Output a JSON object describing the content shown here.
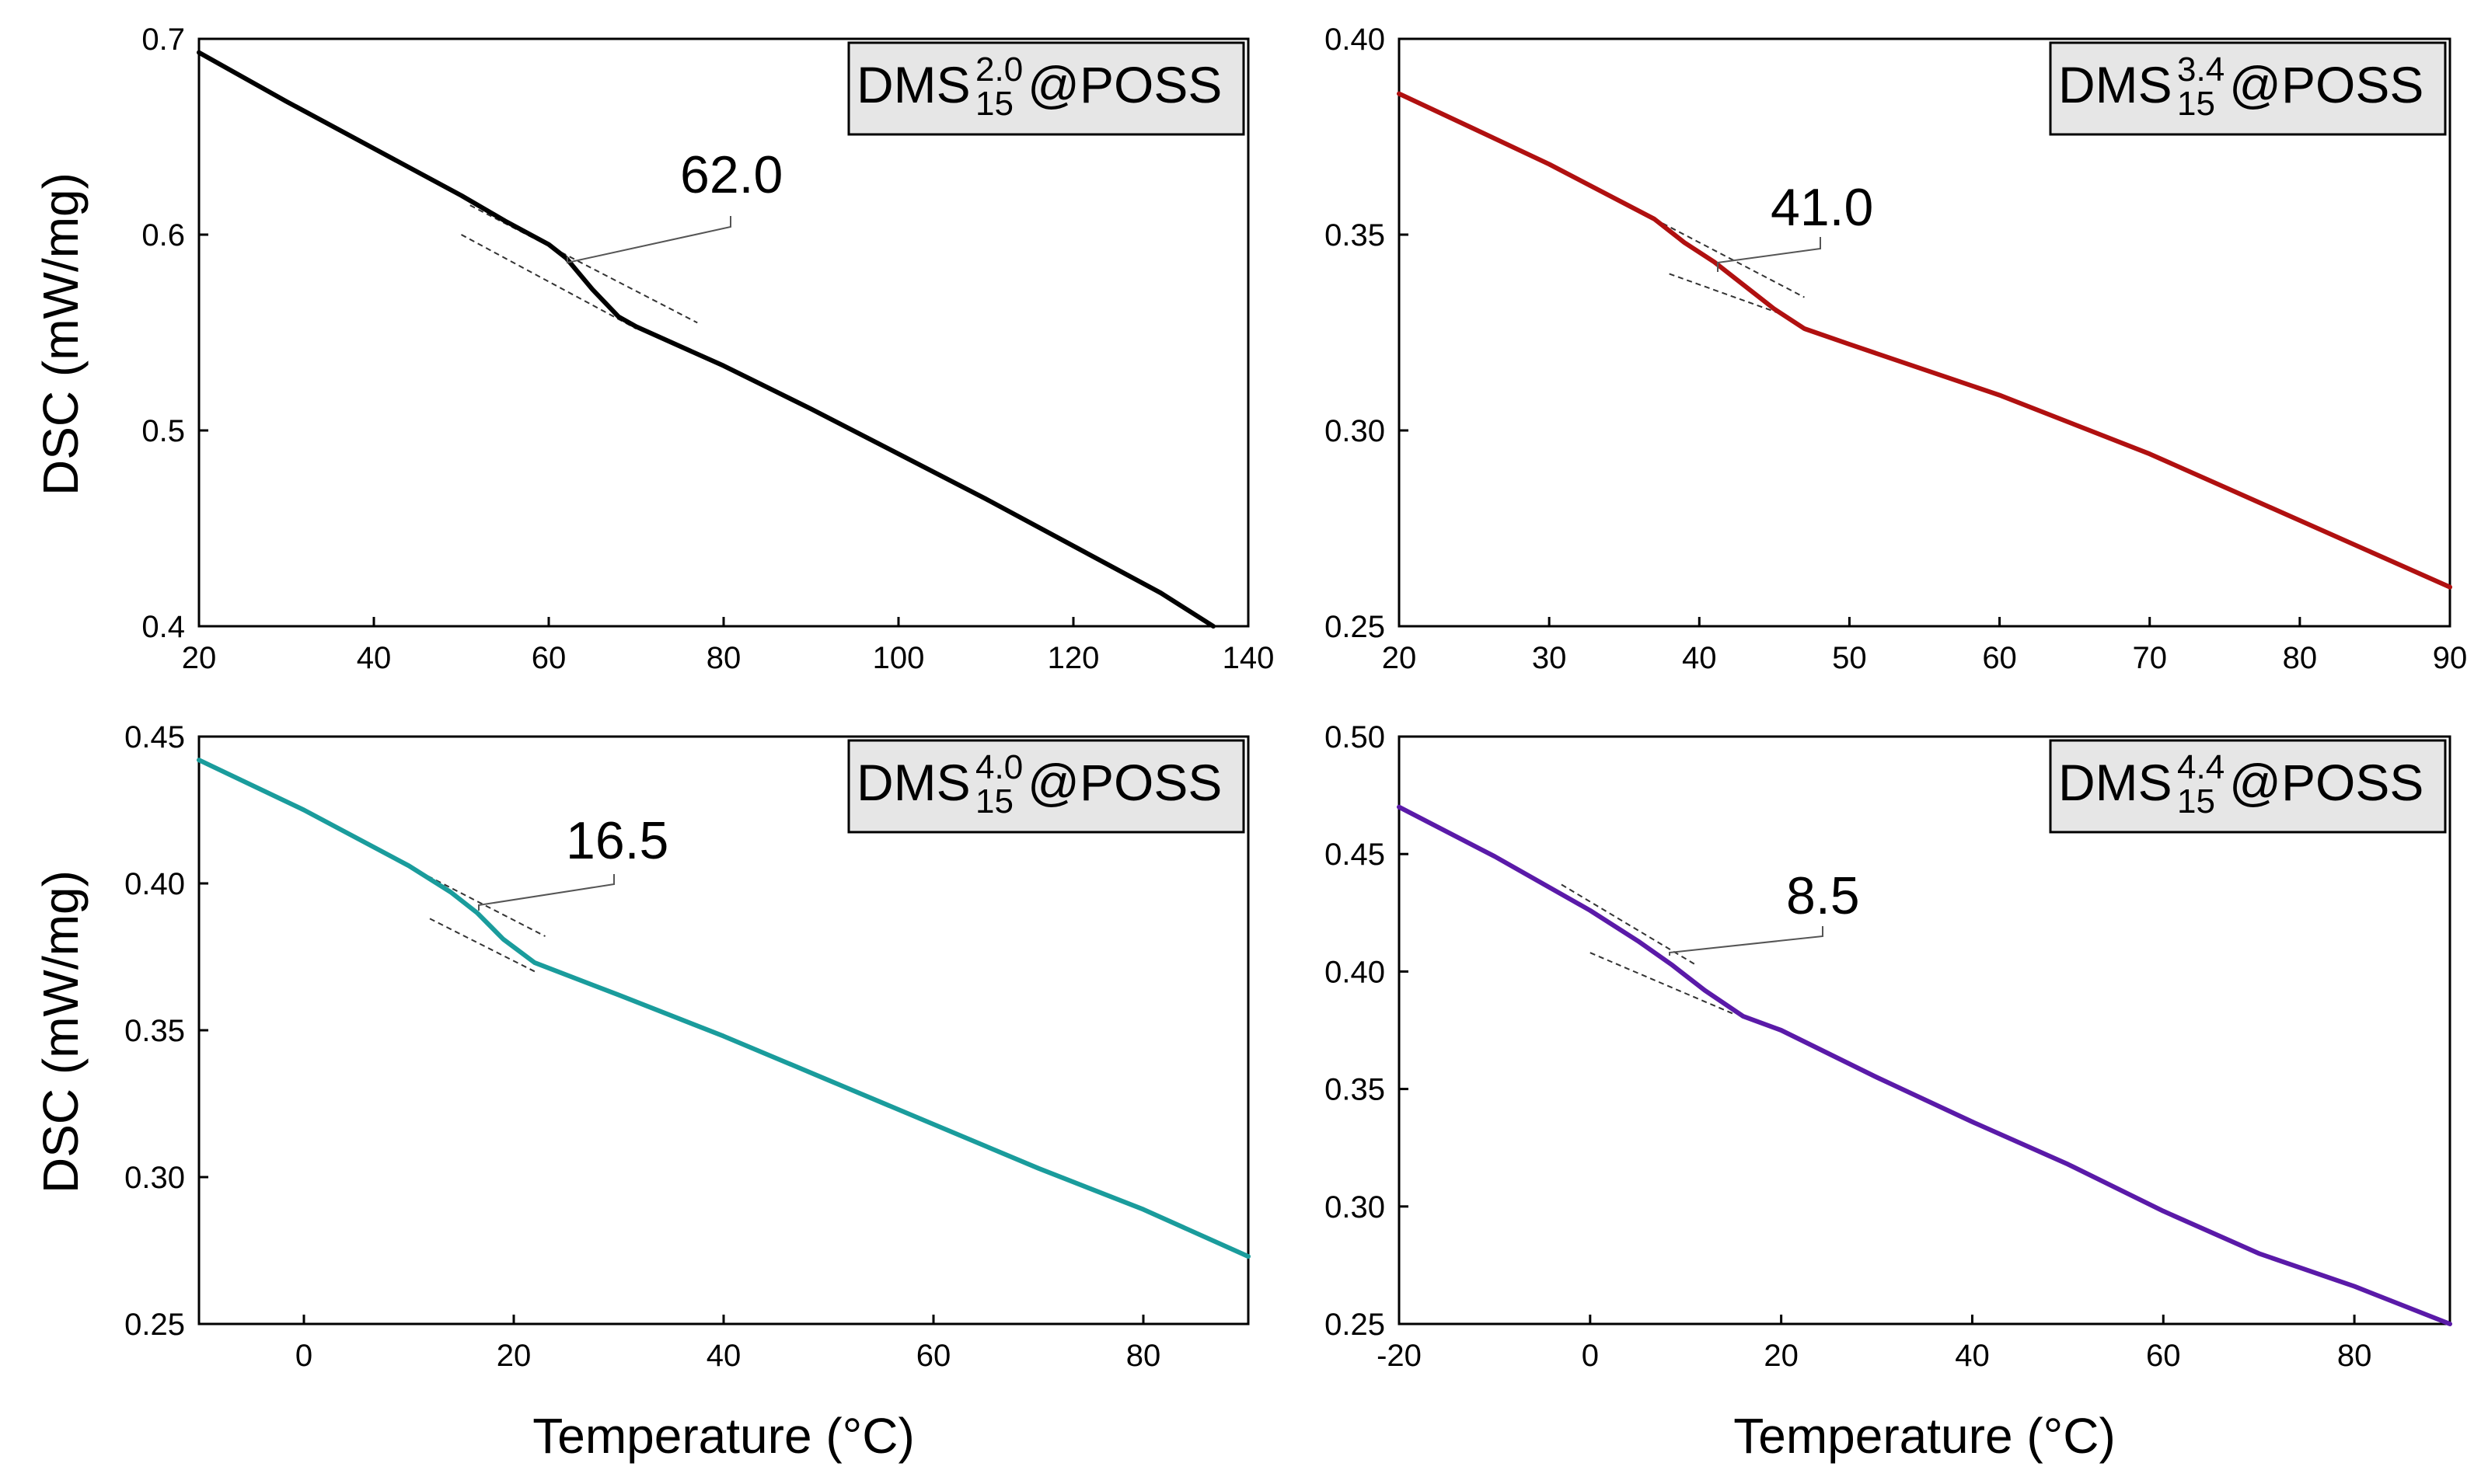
{
  "figure": {
    "ylabel": "DSC (mW/mg)",
    "xlabel": "Temperature (°C)"
  },
  "chart_data": [
    {
      "type": "line",
      "panel": "top-left",
      "legend": {
        "base": "DMS",
        "sup": "2.0",
        "sub": "15",
        "suffix": "@POSS"
      },
      "color": "#000000",
      "xlim": [
        20,
        140
      ],
      "ylim": [
        0.4,
        0.7
      ],
      "xticks": [
        20,
        40,
        60,
        80,
        100,
        120,
        140
      ],
      "xtick_labels": [
        "20",
        "40",
        "60",
        "80",
        "100",
        "120",
        "140"
      ],
      "yticks": [
        0.4,
        0.5,
        0.6,
        0.7
      ],
      "ytick_labels": [
        "0.4",
        "0.5",
        "0.6",
        "0.7"
      ],
      "ylabel": "DSC (mW/mg)",
      "xlabel": "",
      "annotation": {
        "text": "62.0",
        "tg": 62.0
      },
      "series": [
        {
          "name": "DMS15 2.0 @POSS",
          "x": [
            20,
            30,
            40,
            50,
            55,
            60,
            62,
            65,
            68,
            70,
            80,
            90,
            100,
            110,
            120,
            130,
            136
          ],
          "y": [
            0.693,
            0.668,
            0.644,
            0.62,
            0.607,
            0.595,
            0.588,
            0.572,
            0.558,
            0.553,
            0.533,
            0.511,
            0.488,
            0.465,
            0.441,
            0.417,
            0.4
          ]
        }
      ],
      "tangents": [
        {
          "x": [
            51,
            77
          ],
          "y": [
            0.615,
            0.555
          ]
        },
        {
          "x": [
            50,
            70
          ],
          "y": [
            0.6,
            0.552
          ]
        }
      ]
    },
    {
      "type": "line",
      "panel": "top-right",
      "legend": {
        "base": "DMS",
        "sup": "3.4",
        "sub": "15",
        "suffix": "@POSS"
      },
      "color": "#b01010",
      "xlim": [
        20,
        90
      ],
      "ylim": [
        0.25,
        0.4
      ],
      "xticks": [
        20,
        30,
        40,
        50,
        60,
        70,
        80,
        90
      ],
      "xtick_labels": [
        "20",
        "30",
        "40",
        "50",
        "60",
        "70",
        "80",
        "90"
      ],
      "yticks": [
        0.25,
        0.3,
        0.35,
        0.4
      ],
      "ytick_labels": [
        "0.25",
        "0.30",
        "0.35",
        "0.40"
      ],
      "ylabel": "",
      "xlabel": "",
      "annotation": {
        "text": "41.0",
        "tg": 41.0
      },
      "series": [
        {
          "name": "DMS15 3.4 @POSS",
          "x": [
            20,
            25,
            30,
            35,
            37,
            39,
            41,
            43,
            45,
            47,
            50,
            60,
            70,
            80,
            90
          ],
          "y": [
            0.386,
            0.377,
            0.368,
            0.358,
            0.354,
            0.348,
            0.343,
            0.337,
            0.331,
            0.326,
            0.322,
            0.309,
            0.294,
            0.277,
            0.26
          ]
        }
      ],
      "tangents": [
        {
          "x": [
            37,
            47
          ],
          "y": [
            0.354,
            0.334
          ]
        },
        {
          "x": [
            38,
            46
          ],
          "y": [
            0.34,
            0.329
          ]
        }
      ]
    },
    {
      "type": "line",
      "panel": "bottom-left",
      "legend": {
        "base": "DMS",
        "sup": "4.0",
        "sub": "15",
        "suffix": "@POSS"
      },
      "color": "#1a9c9c",
      "xlim": [
        -10,
        90
      ],
      "ylim": [
        0.25,
        0.45
      ],
      "xticks": [
        0,
        20,
        40,
        60,
        80
      ],
      "xtick_labels": [
        "0",
        "20",
        "40",
        "60",
        "80"
      ],
      "yticks": [
        0.25,
        0.3,
        0.35,
        0.4,
        0.45
      ],
      "ytick_labels": [
        "0.25",
        "0.30",
        "0.35",
        "0.40",
        "0.45"
      ],
      "ylabel": "DSC (mW/mg)",
      "xlabel": "Temperature (°C)",
      "annotation": {
        "text": "16.5",
        "tg": 16.5
      },
      "series": [
        {
          "name": "DMS15 4.0 @POSS",
          "x": [
            -10,
            0,
            10,
            14,
            16.5,
            19,
            22,
            30,
            40,
            50,
            60,
            70,
            80,
            90
          ],
          "y": [
            0.442,
            0.425,
            0.406,
            0.397,
            0.39,
            0.381,
            0.373,
            0.362,
            0.348,
            0.333,
            0.318,
            0.303,
            0.289,
            0.273
          ]
        }
      ],
      "tangents": [
        {
          "x": [
            11,
            23
          ],
          "y": [
            0.404,
            0.382
          ]
        },
        {
          "x": [
            12,
            22
          ],
          "y": [
            0.388,
            0.37
          ]
        }
      ]
    },
    {
      "type": "line",
      "panel": "bottom-right",
      "legend": {
        "base": "DMS",
        "sup": "4.4",
        "sub": "15",
        "suffix": "@POSS"
      },
      "color": "#5a1aa8",
      "xlim": [
        -20,
        90
      ],
      "ylim": [
        0.25,
        0.5
      ],
      "xticks": [
        -20,
        0,
        20,
        40,
        60,
        80
      ],
      "xtick_labels": [
        "-20",
        "0",
        "20",
        "40",
        "60",
        "80"
      ],
      "yticks": [
        0.25,
        0.3,
        0.35,
        0.4,
        0.45,
        0.5
      ],
      "ytick_labels": [
        "0.25",
        "0.30",
        "0.35",
        "0.40",
        "0.45",
        "0.50"
      ],
      "ylabel": "",
      "xlabel": "Temperature (°C)",
      "annotation": {
        "text": "8.5",
        "tg": 8.5
      },
      "series": [
        {
          "name": "DMS15 4.4 @POSS",
          "x": [
            -20,
            -10,
            0,
            5,
            8.5,
            12,
            16,
            20,
            30,
            40,
            50,
            60,
            70,
            80,
            90
          ],
          "y": [
            0.47,
            0.449,
            0.426,
            0.413,
            0.403,
            0.392,
            0.381,
            0.375,
            0.355,
            0.336,
            0.318,
            0.298,
            0.28,
            0.266,
            0.25
          ]
        }
      ],
      "tangents": [
        {
          "x": [
            -3,
            11
          ],
          "y": [
            0.437,
            0.403
          ]
        },
        {
          "x": [
            0,
            15
          ],
          "y": [
            0.408,
            0.382
          ]
        }
      ]
    }
  ]
}
